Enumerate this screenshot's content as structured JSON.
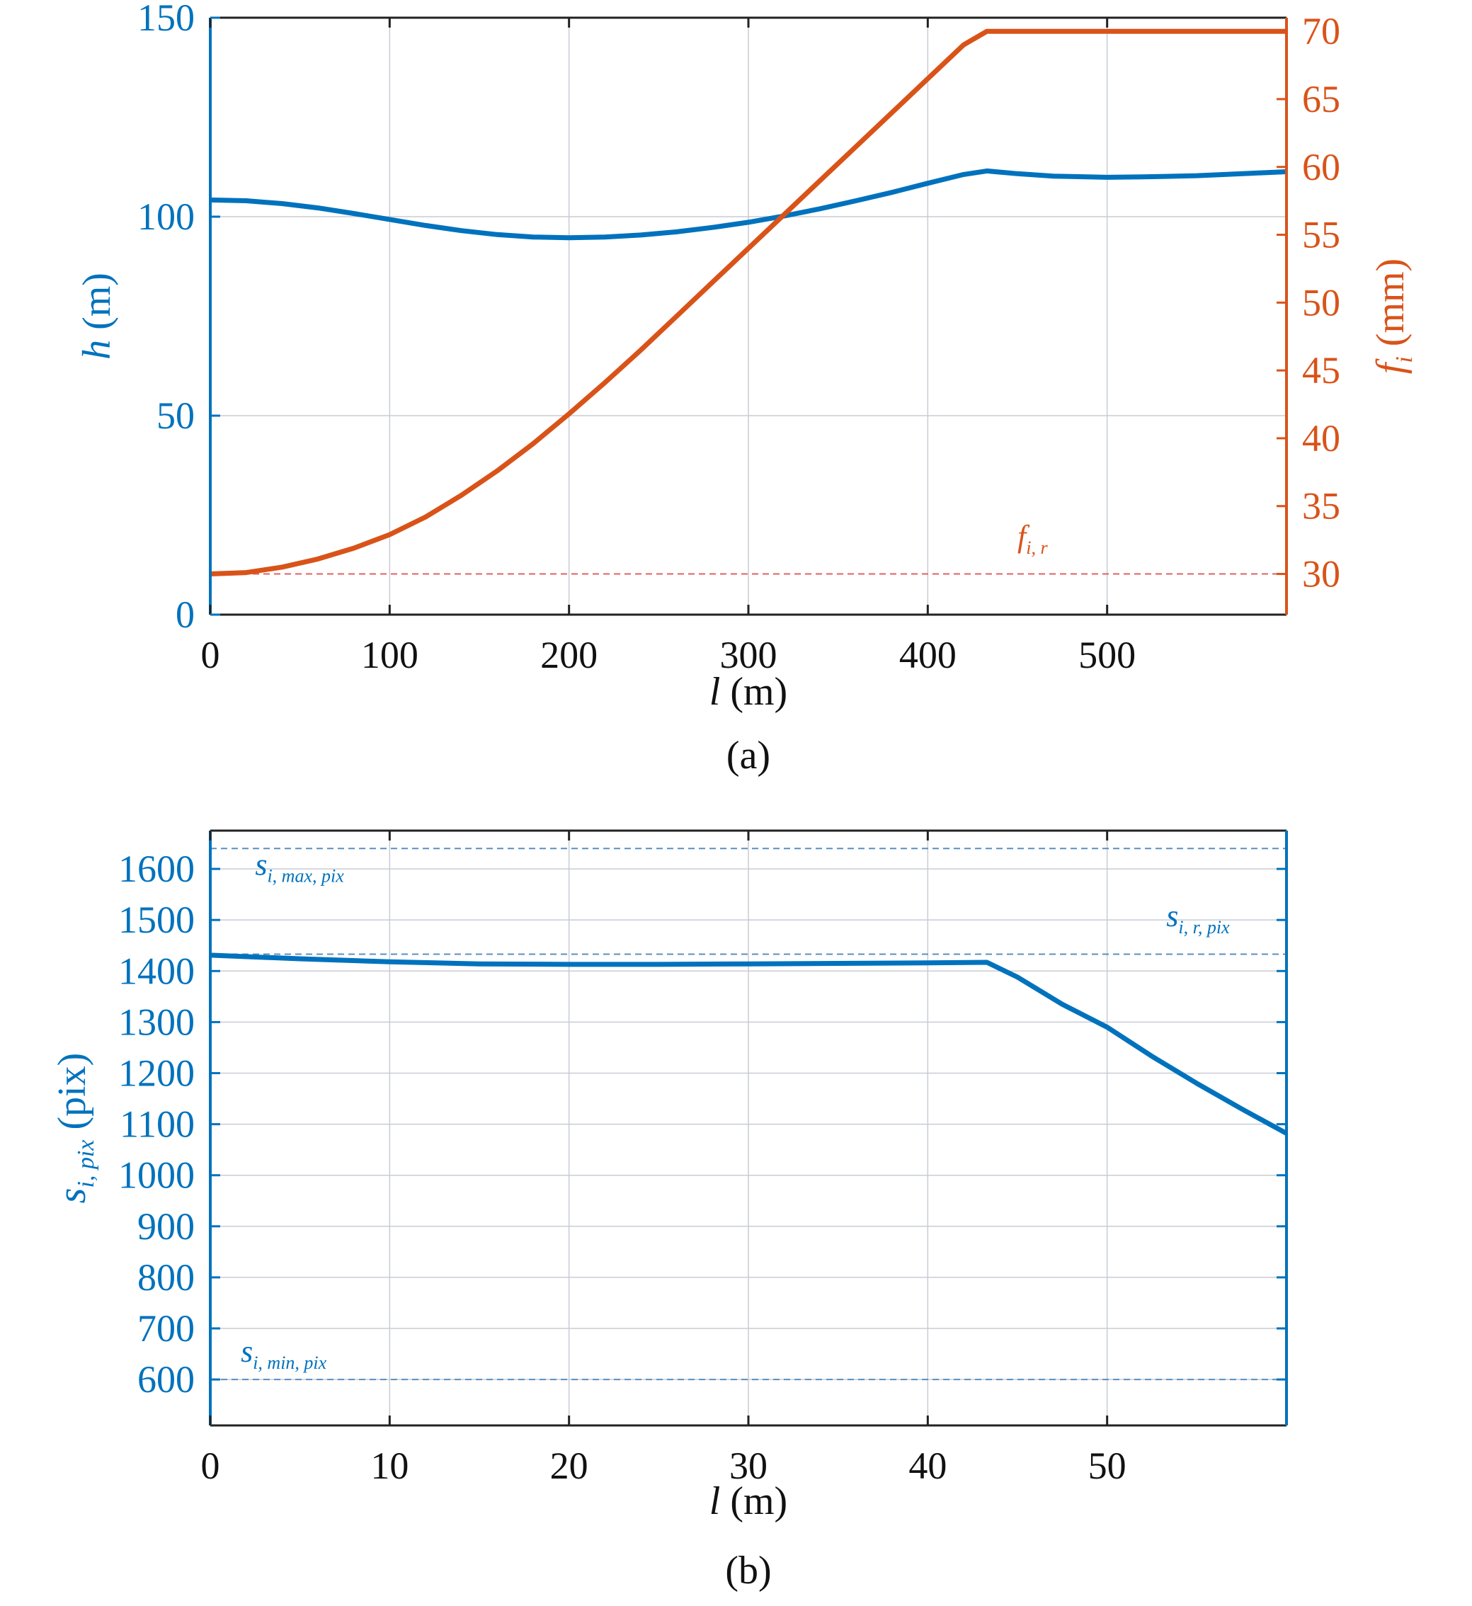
{
  "figure": {
    "colors": {
      "blue": "#0072BD",
      "orange": "#D95319",
      "red_ref": "#E06060",
      "grid": "#c8ccd4",
      "axis": "#222222"
    }
  },
  "chart_data": [
    {
      "type": "line",
      "panel_label": "(a)",
      "xlabel": {
        "var": "l",
        "unit": " (m)"
      },
      "ylabel_left": {
        "var": "h",
        "unit": " (m)"
      },
      "ylabel_right": {
        "var": "f",
        "sub": "i",
        "unit": " (mm)"
      },
      "xlim": [
        0,
        600
      ],
      "ylim_left": [
        0,
        150
      ],
      "ylim_right": [
        27,
        71
      ],
      "xticks": [
        0,
        100,
        200,
        300,
        400,
        500
      ],
      "yticks_left": [
        0,
        50,
        100,
        150
      ],
      "yticks_right": [
        30,
        35,
        40,
        45,
        50,
        55,
        60,
        65,
        70
      ],
      "grid": true,
      "series": [
        {
          "axis": "left",
          "color": "#0072BD",
          "x": [
            0,
            20,
            40,
            60,
            80,
            100,
            120,
            140,
            160,
            180,
            200,
            220,
            240,
            260,
            280,
            300,
            320,
            340,
            360,
            380,
            400,
            420,
            433,
            450,
            470,
            500,
            520,
            550,
            580,
            600
          ],
          "y": [
            104.2,
            104.0,
            103.3,
            102.2,
            100.8,
            99.3,
            97.8,
            96.5,
            95.5,
            94.9,
            94.7,
            94.9,
            95.4,
            96.2,
            97.3,
            98.6,
            100.2,
            102.0,
            104.0,
            106.1,
            108.4,
            110.6,
            111.5,
            110.8,
            110.2,
            109.9,
            110.0,
            110.3,
            110.9,
            111.3
          ]
        },
        {
          "axis": "right",
          "color": "#D95319",
          "x": [
            0,
            20,
            40,
            60,
            80,
            100,
            120,
            140,
            160,
            180,
            200,
            220,
            240,
            260,
            280,
            300,
            320,
            340,
            360,
            380,
            400,
            420,
            433,
            500,
            600
          ],
          "y": [
            30.0,
            30.1,
            30.5,
            31.1,
            31.9,
            32.9,
            34.2,
            35.8,
            37.6,
            39.6,
            41.8,
            44.1,
            46.5,
            49.0,
            51.5,
            54.0,
            56.5,
            59.0,
            61.5,
            64.0,
            66.5,
            69.0,
            70.0,
            70.0,
            70.0
          ]
        }
      ],
      "reference_lines": [
        {
          "axis": "right",
          "y": 30,
          "label": {
            "var": "f",
            "sub": "i, r"
          },
          "label_x": 450,
          "label_y": 32.0,
          "color": "#E06060"
        }
      ]
    },
    {
      "type": "line",
      "panel_label": "(b)",
      "xlabel": {
        "var": "l",
        "unit": " (m)"
      },
      "ylabel_left": {
        "var": "s",
        "sub": "i, pix",
        "unit": " (pix)"
      },
      "xlim": [
        0,
        60
      ],
      "ylim_left": [
        510,
        1675
      ],
      "xticks": [
        0,
        10,
        20,
        30,
        40,
        50
      ],
      "yticks_left": [
        600,
        700,
        800,
        900,
        1000,
        1100,
        1200,
        1300,
        1400,
        1500,
        1600
      ],
      "grid": true,
      "series": [
        {
          "axis": "left",
          "color": "#0072BD",
          "x": [
            0,
            5,
            10,
            15,
            20,
            25,
            30,
            35,
            40,
            43.3,
            45,
            47.5,
            50,
            52.5,
            55,
            57.5,
            60
          ],
          "y": [
            1431,
            1424,
            1418,
            1414,
            1413,
            1413,
            1414,
            1415,
            1416,
            1417,
            1388,
            1335,
            1290,
            1233,
            1180,
            1130,
            1082
          ]
        }
      ],
      "reference_lines": [
        {
          "axis": "left",
          "y": 1640,
          "label": {
            "var": "s",
            "sub": "i, max, pix"
          },
          "label_x": 2.5,
          "label_y": 1588,
          "color": "#5a8fbf"
        },
        {
          "axis": "left",
          "y": 1433,
          "label": {
            "var": "s",
            "sub": "i, r, pix"
          },
          "label_x": 53.3,
          "label_y": 1488,
          "color": "#5a8fbf"
        },
        {
          "axis": "left",
          "y": 600,
          "label": {
            "var": "s",
            "sub": "i, min, pix"
          },
          "label_x": 1.7,
          "label_y": 635,
          "color": "#5a8fbf"
        }
      ]
    }
  ]
}
